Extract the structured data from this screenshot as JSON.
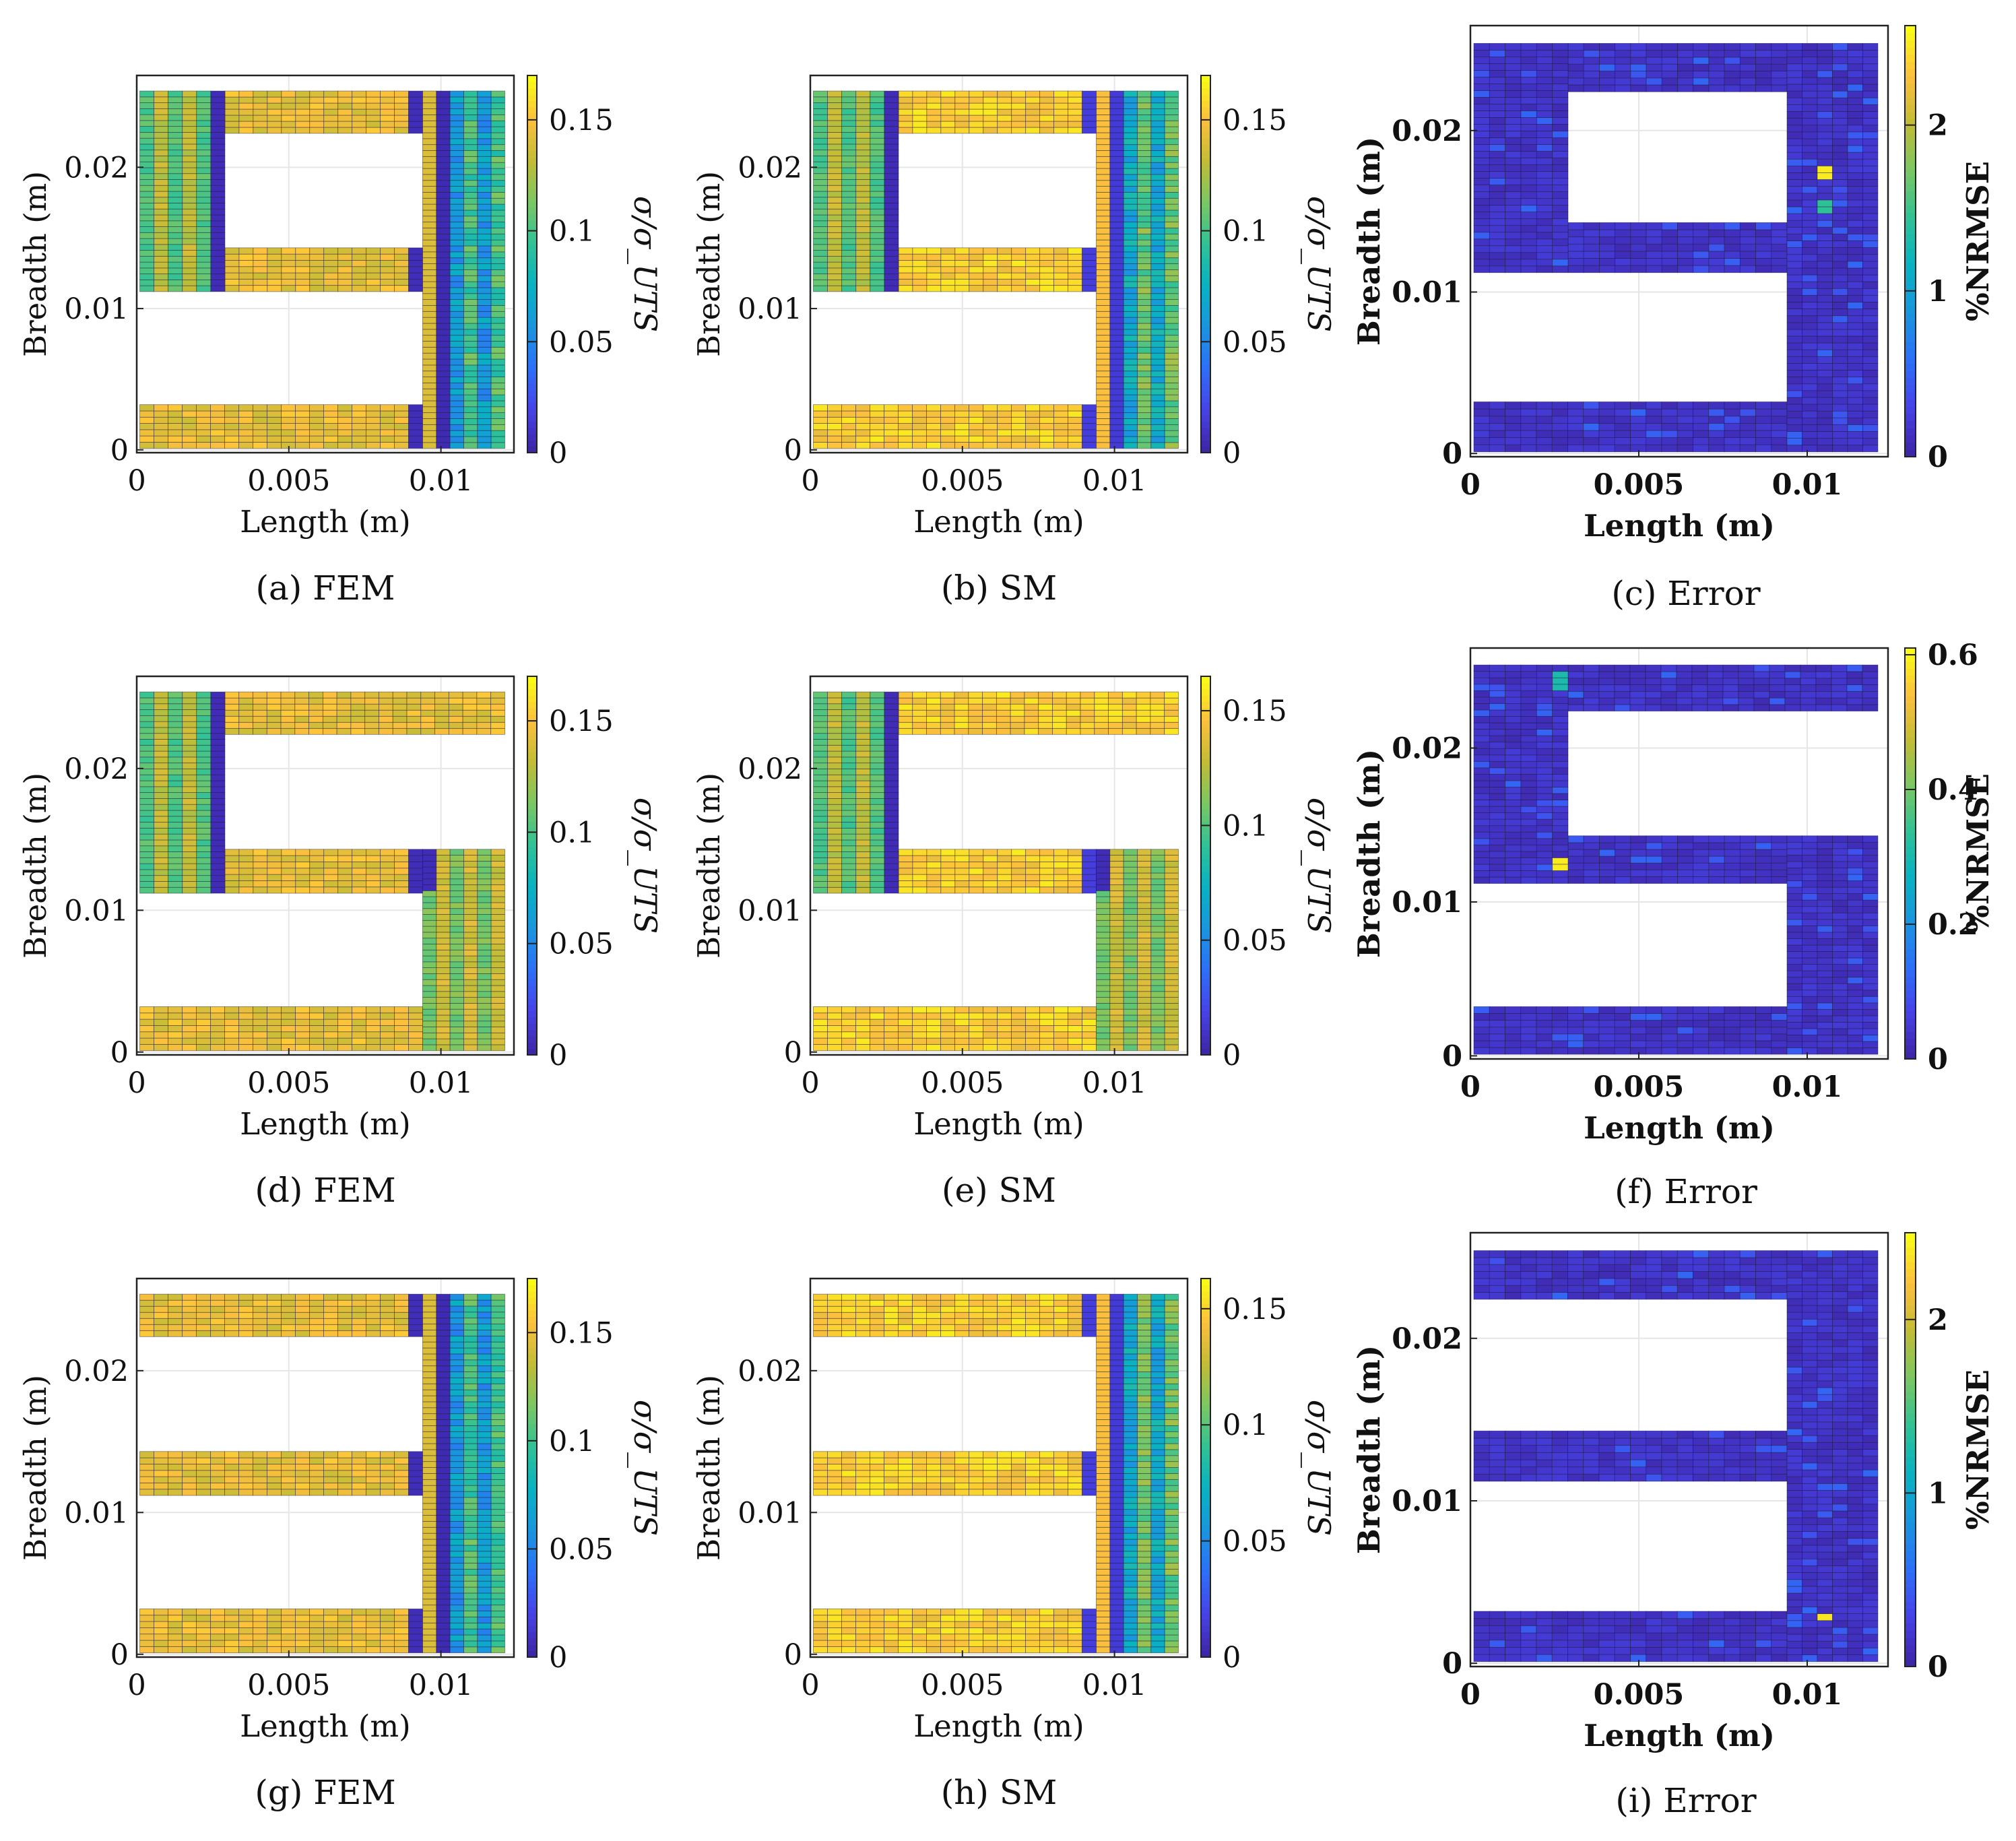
{
  "colors": {
    "colormap": [
      "#3e26a8",
      "#4743e9",
      "#2d70f8",
      "#1996de",
      "#08b2c2",
      "#30c296",
      "#7ac763",
      "#c2bc36",
      "#fcbf3d",
      "#f9fb15"
    ],
    "axes_bg": "#ffffff",
    "grid": "#e6e6e6",
    "frame": "#222222"
  },
  "figure": {
    "panels": [
      {
        "id": "a",
        "caption": "(a) FEM",
        "kind": "stress",
        "shape": "9",
        "variant": "fem",
        "colorbar_label": "σ/σ_UTS",
        "colorbar_ticks": [
          "0",
          "0.05",
          "0.1",
          "0.15"
        ]
      },
      {
        "id": "b",
        "caption": "(b) SM",
        "kind": "stress",
        "shape": "9",
        "variant": "sm",
        "colorbar_label": "σ/σ_UTS",
        "colorbar_ticks": [
          "0",
          "0.05",
          "0.1",
          "0.15"
        ]
      },
      {
        "id": "c",
        "caption": "(c) Error",
        "kind": "error",
        "shape": "9",
        "variant": "err",
        "colorbar_label": "%NRMSE",
        "colorbar_ticks": [
          "0",
          "1",
          "2"
        ]
      },
      {
        "id": "d",
        "caption": "(d) FEM",
        "kind": "stress",
        "shape": "5",
        "variant": "fem",
        "colorbar_label": "σ/σ_UTS",
        "colorbar_ticks": [
          "0",
          "0.05",
          "0.1",
          "0.15"
        ]
      },
      {
        "id": "e",
        "caption": "(e) SM",
        "kind": "stress",
        "shape": "5",
        "variant": "sm",
        "colorbar_label": "σ/σ_UTS",
        "colorbar_ticks": [
          "0",
          "0.05",
          "0.1",
          "0.15"
        ]
      },
      {
        "id": "f",
        "caption": "(f) Error",
        "kind": "error",
        "shape": "5",
        "variant": "err",
        "colorbar_label": "%NRMSE",
        "colorbar_ticks": [
          "0",
          "0.2",
          "0.4",
          "0.6"
        ]
      },
      {
        "id": "g",
        "caption": "(g) FEM",
        "kind": "stress",
        "shape": "3",
        "variant": "fem",
        "colorbar_label": "σ/σ_UTS",
        "colorbar_ticks": [
          "0",
          "0.05",
          "0.1",
          "0.15"
        ]
      },
      {
        "id": "h",
        "caption": "(h) SM",
        "kind": "stress",
        "shape": "3",
        "variant": "sm",
        "colorbar_label": "σ/σ_UTS",
        "colorbar_ticks": [
          "0",
          "0.05",
          "0.1",
          "0.15"
        ]
      },
      {
        "id": "i",
        "caption": "(i) Error",
        "kind": "error",
        "shape": "3",
        "variant": "err",
        "colorbar_label": "%NRMSE",
        "colorbar_ticks": [
          "0",
          "1",
          "2"
        ]
      }
    ]
  },
  "chart_data": [
    {
      "type": "heatmap",
      "title": "(a) FEM",
      "xlabel": "Length (m)",
      "ylabel": "Breadth (m)",
      "xlim": [
        0,
        0.0124
      ],
      "ylim": [
        -0.0002,
        0.0265
      ],
      "xticks": [
        "0",
        "0.005",
        "0.01"
      ],
      "yticks": [
        "0",
        "0.01",
        "0.02"
      ],
      "shape": "digit 9",
      "colorbar": {
        "label": "σ/σ_UTS",
        "range": [
          0,
          0.17
        ],
        "ticks": [
          0,
          0.05,
          0.1,
          0.15
        ]
      },
      "value_summary": {
        "horizontal_bars": 0.14,
        "left_column": 0.11,
        "right_column": 0.06,
        "min": 0,
        "max": 0.17
      }
    },
    {
      "type": "heatmap",
      "title": "(b) SM",
      "xlabel": "Length (m)",
      "ylabel": "Breadth (m)",
      "xlim": [
        0,
        0.0124
      ],
      "ylim": [
        -0.0002,
        0.0265
      ],
      "xticks": [
        "0",
        "0.005",
        "0.01"
      ],
      "yticks": [
        "0",
        "0.01",
        "0.02"
      ],
      "shape": "digit 9",
      "colorbar": {
        "label": "σ/σ_UTS",
        "range": [
          0,
          0.17
        ],
        "ticks": [
          0,
          0.05,
          0.1,
          0.15
        ]
      },
      "value_summary": {
        "horizontal_bars": 0.14,
        "left_column": 0.11,
        "right_column": 0.07,
        "min": 0,
        "max": 0.17
      }
    },
    {
      "type": "heatmap",
      "title": "(c) Error",
      "xlabel": "Length (m)",
      "ylabel": "Breadth (m)",
      "xlim": [
        0,
        0.0124
      ],
      "ylim": [
        -0.0002,
        0.0265
      ],
      "xticks": [
        "0",
        "0.005",
        "0.01"
      ],
      "yticks": [
        "0",
        "0.01",
        "0.02"
      ],
      "shape": "digit 9",
      "colorbar": {
        "label": "%NRMSE",
        "range": [
          0,
          2.6
        ],
        "ticks": [
          0,
          1,
          2
        ]
      },
      "value_summary": {
        "typical": 0.05,
        "max": 2.5,
        "max_location_m": [
          0.0104,
          0.0172
        ]
      }
    },
    {
      "type": "heatmap",
      "title": "(d) FEM",
      "xlabel": "Length (m)",
      "ylabel": "Breadth (m)",
      "xlim": [
        0,
        0.0124
      ],
      "ylim": [
        -0.0002,
        0.0265
      ],
      "xticks": [
        "0",
        "0.005",
        "0.01"
      ],
      "yticks": [
        "0",
        "0.01",
        "0.02"
      ],
      "shape": "digit 5",
      "colorbar": {
        "label": "σ/σ_UTS",
        "range": [
          0,
          0.17
        ],
        "ticks": [
          0,
          0.05,
          0.1,
          0.15
        ]
      },
      "value_summary": {
        "horizontal_bars": 0.145,
        "left_column": 0.11,
        "right_column": 0.12,
        "min": 0,
        "max": 0.17
      }
    },
    {
      "type": "heatmap",
      "title": "(e) SM",
      "xlabel": "Length (m)",
      "ylabel": "Breadth (m)",
      "xlim": [
        0,
        0.0124
      ],
      "ylim": [
        -0.0002,
        0.0265
      ],
      "xticks": [
        "0",
        "0.005",
        "0.01"
      ],
      "yticks": [
        "0",
        "0.01",
        "0.02"
      ],
      "shape": "digit 5",
      "colorbar": {
        "label": "σ/σ_UTS",
        "range": [
          0,
          0.165
        ],
        "ticks": [
          0,
          0.05,
          0.1,
          0.15
        ]
      },
      "value_summary": {
        "horizontal_bars": 0.145,
        "left_column": 0.11,
        "right_column": 0.12,
        "min": 0,
        "max": 0.165
      }
    },
    {
      "type": "heatmap",
      "title": "(f) Error",
      "xlabel": "Length (m)",
      "ylabel": "Breadth (m)",
      "xlim": [
        0,
        0.0124
      ],
      "ylim": [
        -0.0002,
        0.0265
      ],
      "xticks": [
        "0",
        "0.005",
        "0.01"
      ],
      "yticks": [
        "0",
        "0.01",
        "0.02"
      ],
      "shape": "digit 5",
      "colorbar": {
        "label": "%NRMSE",
        "range": [
          0,
          0.61
        ],
        "ticks": [
          0,
          0.2,
          0.4,
          0.6
        ]
      },
      "value_summary": {
        "typical": 0.03,
        "max": 0.6,
        "max_location_m": [
          0.0028,
          0.0124
        ]
      }
    },
    {
      "type": "heatmap",
      "title": "(g) FEM",
      "xlabel": "Length (m)",
      "ylabel": "Breadth (m)",
      "xlim": [
        0,
        0.0124
      ],
      "ylim": [
        -0.0002,
        0.0265
      ],
      "xticks": [
        "0",
        "0.005",
        "0.01"
      ],
      "yticks": [
        "0",
        "0.01",
        "0.02"
      ],
      "shape": "digit 3",
      "colorbar": {
        "label": "σ/σ_UTS",
        "range": [
          0,
          0.175
        ],
        "ticks": [
          0,
          0.05,
          0.1,
          0.15
        ]
      },
      "value_summary": {
        "horizontal_bars": 0.145,
        "right_column": 0.07,
        "min": 0,
        "max": 0.175
      }
    },
    {
      "type": "heatmap",
      "title": "(h) SM",
      "xlabel": "Length (m)",
      "ylabel": "Breadth (m)",
      "xlim": [
        0,
        0.0124
      ],
      "ylim": [
        -0.0002,
        0.0265
      ],
      "xticks": [
        "0",
        "0.005",
        "0.01"
      ],
      "yticks": [
        "0",
        "0.01",
        "0.02"
      ],
      "shape": "digit 3",
      "colorbar": {
        "label": "σ/σ_UTS",
        "range": [
          0,
          0.163
        ],
        "ticks": [
          0,
          0.05,
          0.1,
          0.15
        ]
      },
      "value_summary": {
        "horizontal_bars": 0.15,
        "right_column": 0.08,
        "min": 0,
        "max": 0.163
      }
    },
    {
      "type": "heatmap",
      "title": "(i) Error",
      "xlabel": "Length (m)",
      "ylabel": "Breadth (m)",
      "xlim": [
        0,
        0.0124
      ],
      "ylim": [
        -0.0002,
        0.0265
      ],
      "xticks": [
        "0",
        "0.005",
        "0.01"
      ],
      "yticks": [
        "0",
        "0.01",
        "0.02"
      ],
      "shape": "digit 3",
      "colorbar": {
        "label": "%NRMSE",
        "range": [
          0,
          2.5
        ],
        "ticks": [
          0,
          1,
          2
        ]
      },
      "value_summary": {
        "typical": 0.05,
        "max": 2.4,
        "max_location_m": [
          0.0104,
          0.0028
        ]
      }
    }
  ]
}
